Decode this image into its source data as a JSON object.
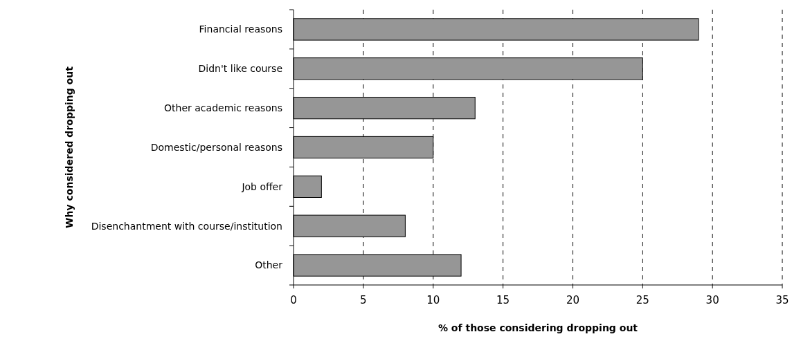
{
  "chart_data": {
    "type": "bar",
    "orientation": "horizontal",
    "xlabel": "% of those considering dropping out",
    "ylabel": "Why considered dropping out",
    "categories": [
      "Financial reasons",
      "Didn't like course",
      "Other academic reasons",
      "Domestic/personal reasons",
      "Job offer",
      "Disenchantment with course/institution",
      "Other"
    ],
    "values": [
      29,
      25,
      13,
      10,
      2,
      8,
      12
    ],
    "color": "#969696",
    "xlim": [
      0,
      35
    ],
    "xticks": [
      0,
      5,
      10,
      15,
      20,
      25,
      30,
      35
    ],
    "grid": "x"
  }
}
